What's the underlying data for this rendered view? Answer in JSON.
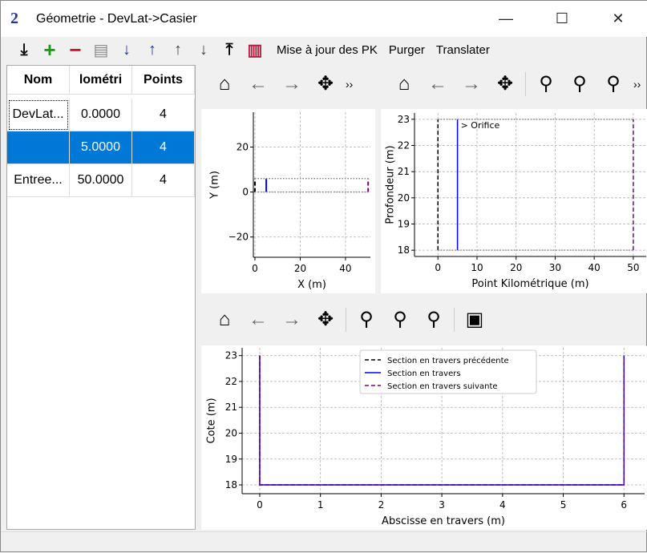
{
  "window": {
    "title": "Géometrie - DevLat->Casier",
    "minimize": "—",
    "maximize": "☐",
    "close": "✕"
  },
  "toolbar": {
    "icons": [
      "import-icon",
      "add-icon",
      "remove-icon",
      "document-icon",
      "sort-descending-icon",
      "sort-ascending-icon",
      "move-up-icon",
      "move-down-icon",
      "export-icon",
      "barcode-icon"
    ],
    "update_pk": "Mise à jour des PK",
    "purge": "Purger",
    "translate": "Translater"
  },
  "table": {
    "headers": [
      "Nom",
      "lométri",
      "Points"
    ],
    "rows": [
      [
        "DevLat...",
        "0.0000",
        "4"
      ],
      [
        "",
        "5.0000",
        "4"
      ],
      [
        "Entree...",
        "50.0000",
        "4"
      ]
    ],
    "selected_row": 1
  },
  "nav_toolbar": {
    "more": "››"
  },
  "chart_data": [
    {
      "type": "line",
      "xlabel": "X (m)",
      "ylabel": "Y (m)",
      "xlim": [
        -0.7,
        51
      ],
      "ylim": [
        -29,
        35.5
      ],
      "xticks": [
        0,
        20,
        40
      ],
      "yticks": [
        -20,
        0,
        20
      ],
      "grid": true,
      "series": [
        {
          "color": "#000000",
          "dash": "dashed",
          "x": [
            0,
            0
          ],
          "y": [
            0,
            6
          ]
        },
        {
          "color": "#0000ff",
          "dash": "solid",
          "x": [
            5,
            5
          ],
          "y": [
            0,
            6
          ]
        },
        {
          "color": "#800080",
          "dash": "dashed",
          "x": [
            50,
            50
          ],
          "y": [
            0,
            6
          ]
        },
        {
          "color": "#888888",
          "dash": "dotted",
          "x": [
            0,
            50
          ],
          "y": [
            0,
            0
          ]
        },
        {
          "color": "#888888",
          "dash": "dotted",
          "x": [
            0,
            50
          ],
          "y": [
            6,
            6
          ]
        }
      ]
    },
    {
      "type": "line",
      "xlabel": "Point Kilométrique (m)",
      "ylabel": "Profondeur (m)",
      "xlim": [
        -6,
        53.3
      ],
      "ylim": [
        17.76,
        23.24
      ],
      "xticks": [
        0,
        10,
        20,
        30,
        40,
        50
      ],
      "yticks": [
        18,
        19,
        20,
        21,
        22,
        23
      ],
      "grid": true,
      "annotation": {
        "text": "> Orifice",
        "x": 5,
        "y": 23
      },
      "series": [
        {
          "color": "#000000",
          "dash": "dashed",
          "x": [
            0,
            0
          ],
          "y": [
            18,
            23
          ]
        },
        {
          "color": "#0000ff",
          "dash": "solid",
          "x": [
            5,
            5
          ],
          "y": [
            18,
            23
          ]
        },
        {
          "color": "#800080",
          "dash": "dashed",
          "x": [
            50,
            50
          ],
          "y": [
            18,
            23
          ]
        },
        {
          "color": "#888888",
          "dash": "dotted",
          "x": [
            0,
            50
          ],
          "y": [
            23,
            23
          ]
        },
        {
          "color": "#888888",
          "dash": "dotted",
          "x": [
            0,
            50
          ],
          "y": [
            18,
            18
          ]
        }
      ]
    },
    {
      "type": "line",
      "xlabel": "Abscisse en travers (m)",
      "ylabel": "Cote (m)",
      "xlim": [
        -0.29,
        6.34
      ],
      "ylim": [
        17.66,
        23.3
      ],
      "xticks": [
        0,
        1,
        2,
        3,
        4,
        5,
        6
      ],
      "yticks": [
        18,
        19,
        20,
        21,
        22,
        23
      ],
      "grid": true,
      "legend": "top-center",
      "series": [
        {
          "name": "Section en travers précédente",
          "color": "#000000",
          "dash": "dashed",
          "x": [
            0,
            0,
            6,
            6
          ],
          "y": [
            23,
            18,
            18,
            23
          ]
        },
        {
          "name": "Section en travers",
          "color": "#0000ff",
          "dash": "solid",
          "x": [
            0,
            0,
            6,
            6
          ],
          "y": [
            23,
            18,
            18,
            23
          ]
        },
        {
          "name": "Section en travers suivante",
          "color": "#800080",
          "dash": "dashed",
          "x": [
            0,
            0,
            6,
            6
          ],
          "y": [
            23,
            18,
            18,
            23
          ]
        }
      ]
    }
  ]
}
